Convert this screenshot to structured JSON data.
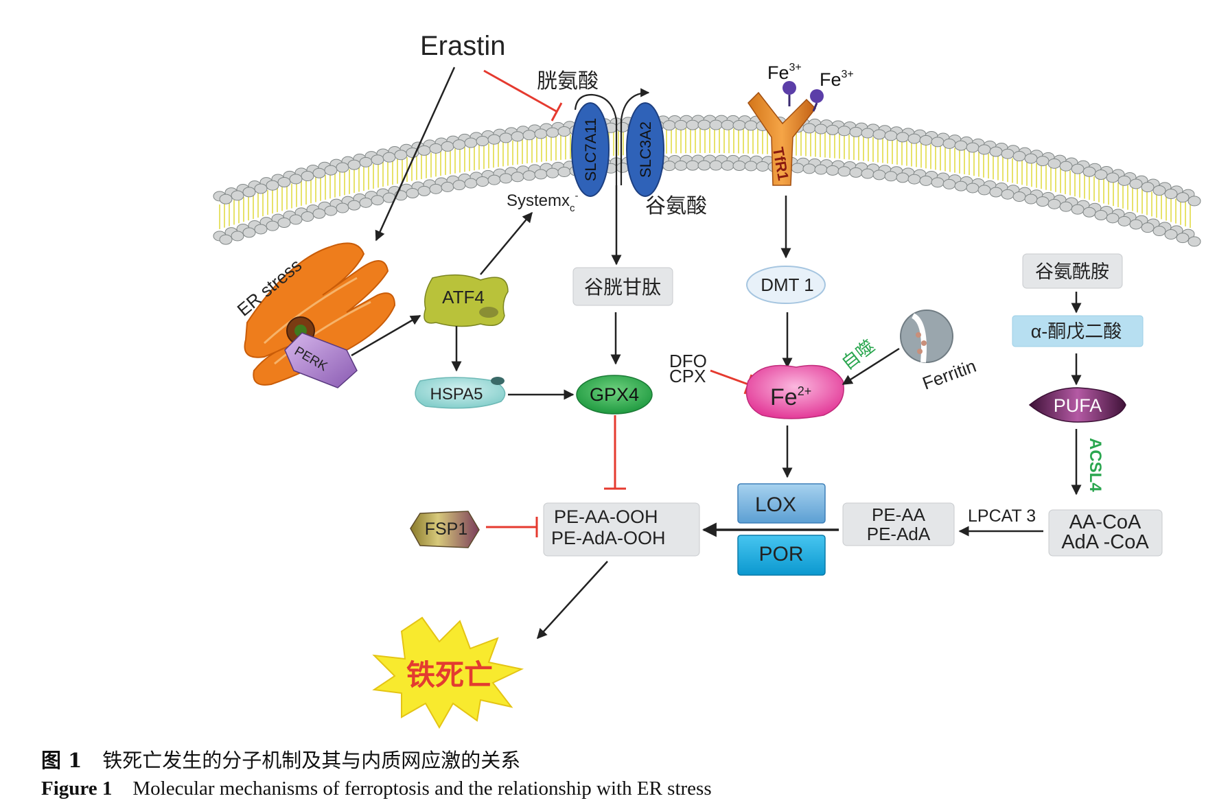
{
  "nodes": {
    "erastin": "Erastin",
    "cystine": "胱氨酸",
    "glutamate": "谷氨酸",
    "slc7a11": "SLC7A11",
    "slc3a2": "SLC3A2",
    "systemxc": "Systemx",
    "systemxc_sub": "c",
    "systemxc_sup": "-",
    "fe3_base": "Fe",
    "fe3_sup": "3+",
    "tfr1": "TfR1",
    "er_stress": "ER stress",
    "perk": "PERK",
    "atf4": "ATF4",
    "glutathione": "谷胱甘肽",
    "dmt1": "DMT 1",
    "glutamine": "谷氨酰胺",
    "akg": "α-酮戊二酸",
    "hspa5": "HSPA5",
    "gpx4": "GPX4",
    "dfo": "DFO",
    "cpx": "CPX",
    "fe2_base": "Fe",
    "fe2_sup": "2+",
    "autophagy": "自噬",
    "ferritin": "Ferritin",
    "pufa": "PUFA",
    "acsl4": "ACSL4",
    "fsp1": "FSP1",
    "pe_aa_ooh": "PE-AA-OOH",
    "pe_ada_ooh": "PE-AdA-OOH",
    "lox": "LOX",
    "por": "POR",
    "pe_aa": "PE-AA",
    "pe_ada": "PE-AdA",
    "lpcat3": "LPCAT 3",
    "aa_coa": "AA-CoA",
    "ada_coa": "AdA -CoA",
    "ferroptosis": "铁死亡"
  },
  "caption": {
    "cn_label": "图 1",
    "cn_text": "铁死亡发生的分子机制及其与内质网应激的关系",
    "en_label": "Figure 1",
    "en_text": "Molecular mechanisms of ferroptosis and the relationship with ER stress"
  },
  "colors": {
    "activation_arrow": "#222222",
    "inhibition": "#e53a2f",
    "transporter": "#2f62b8",
    "membrane_head": "#d2d4d4",
    "membrane_tail": "#e7e26a",
    "er": "#ee7d1c",
    "atf4": "#b9c23a",
    "gpx4": "#27a84a",
    "hspa5": "#8fd6d4",
    "fe2": "#ea3c9d",
    "pufa": "#6a2560",
    "lox": "#7ab8e2",
    "por": "#15aee4",
    "acsl4_text": "#2aa64f",
    "autophagy_text": "#2aa64f",
    "ferroptosis_text": "#e33b30",
    "burst": "#f8ea2e"
  }
}
